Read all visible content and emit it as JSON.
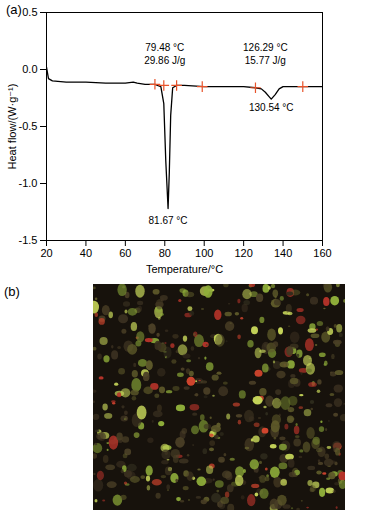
{
  "chart_data": {
    "type": "line",
    "panel_label": "(a)",
    "x_label": "Temperature/°C",
    "y_label": "Heat flow/(W·g⁻¹)",
    "x": [
      20,
      21,
      23,
      30,
      40,
      50,
      60,
      64,
      66,
      70,
      75,
      78,
      79.5,
      80.5,
      81.67,
      82.3,
      83,
      84,
      86,
      90,
      100,
      110,
      120,
      126,
      129,
      131,
      133,
      134,
      136,
      138,
      140,
      145,
      150,
      160
    ],
    "values": [
      0.02,
      -0.08,
      -0.1,
      -0.11,
      -0.11,
      -0.12,
      -0.12,
      -0.11,
      -0.12,
      -0.13,
      -0.13,
      -0.15,
      -0.3,
      -0.8,
      -1.22,
      -0.9,
      -0.4,
      -0.16,
      -0.14,
      -0.14,
      -0.15,
      -0.15,
      -0.15,
      -0.16,
      -0.17,
      -0.2,
      -0.24,
      -0.26,
      -0.22,
      -0.17,
      -0.15,
      -0.15,
      -0.15,
      -0.15
    ],
    "color": "#000000",
    "xlim": [
      20,
      160
    ],
    "xticks": [
      20,
      40,
      60,
      80,
      100,
      120,
      140,
      160
    ],
    "ylim": [
      -1.5,
      0.5
    ],
    "yticks": [
      0.5,
      {
        "value": 0,
        "label": "0.0"
      },
      -0.5,
      {
        "value": -1,
        "label": "-1.0"
      },
      -1.5
    ],
    "limit_marks": {
      "x": [
        75,
        79.5,
        86,
        99,
        126,
        150
      ],
      "y": [
        -0.13,
        -0.14,
        -0.14,
        -0.15,
        -0.16,
        -0.15
      ],
      "color": "#e8532b",
      "marker": "plus"
    },
    "annotations": [
      {
        "text": "79.48 °C",
        "x": 80,
        "y": 0.19
      },
      {
        "text": "29.86 J/g",
        "x": 80,
        "y": 0.08
      },
      {
        "text": "81.67 °C",
        "x": 81.67,
        "y": -1.33
      },
      {
        "text": "126.29 °C",
        "x": 131,
        "y": 0.19
      },
      {
        "text": "15.77 J/g",
        "x": 131,
        "y": 0.08
      },
      {
        "text": "130.54 °C",
        "x": 134,
        "y": -0.34
      }
    ]
  },
  "panel_b": {
    "label": "(b)"
  }
}
